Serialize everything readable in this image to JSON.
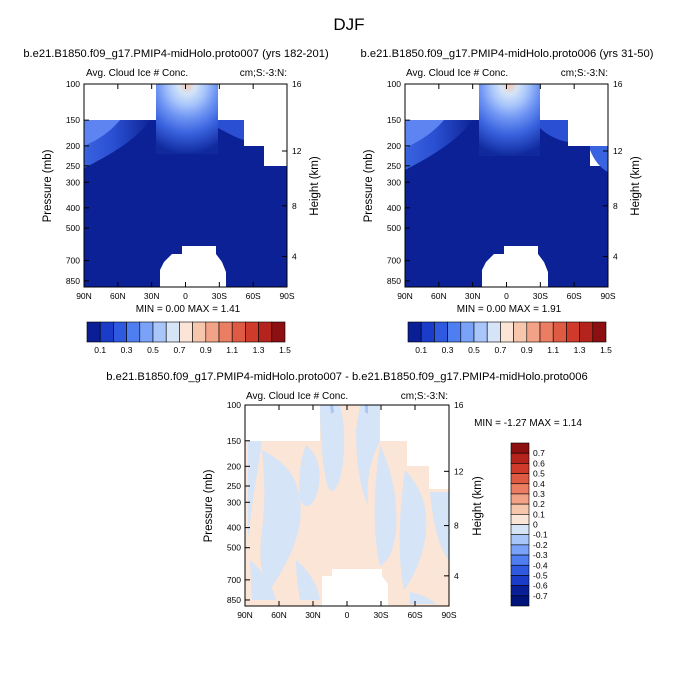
{
  "figure_title": "DJF",
  "chart_data": [
    {
      "type": "contour",
      "title": "b.e21.B1850.f09_g17.PMIP4-midHolo.proto007 (yrs 182-201)",
      "left_label": "Avg. Cloud Ice # Conc.",
      "right_label": "cm;S:-3:N:",
      "ylabel": "Pressure (mb)",
      "ylabel_right": "Height (km)",
      "xticks": [
        "90N",
        "60N",
        "30N",
        "0",
        "30S",
        "60S",
        "90S"
      ],
      "yticks": [
        "100",
        "150",
        "200",
        "250",
        "300",
        "400",
        "500",
        "700",
        "850"
      ],
      "yticks_right": [
        "16",
        "12",
        "8",
        "4"
      ],
      "stats": "MIN =  0.00  MAX =  1.41",
      "min": 0.0,
      "max": 1.41
    },
    {
      "type": "contour",
      "title": "b.e21.B1850.f09_g17.PMIP4-midHolo.proto006 (yrs 31-50)",
      "left_label": "Avg. Cloud Ice # Conc.",
      "right_label": "cm;S:-3:N:",
      "ylabel": "Pressure (mb)",
      "ylabel_right": "Height (km)",
      "xticks": [
        "90N",
        "60N",
        "30N",
        "0",
        "30S",
        "60S",
        "90S"
      ],
      "yticks": [
        "100",
        "150",
        "200",
        "250",
        "300",
        "400",
        "500",
        "700",
        "850"
      ],
      "yticks_right": [
        "16",
        "12",
        "8",
        "4"
      ],
      "stats": "MIN =  0.00  MAX =  1.91",
      "min": 0.0,
      "max": 1.91
    },
    {
      "type": "contour",
      "title": "b.e21.B1850.f09_g17.PMIP4-midHolo.proto007 - b.e21.B1850.f09_g17.PMIP4-midHolo.proto006",
      "left_label": "Avg. Cloud Ice # Conc.",
      "right_label": "cm;S:-3:N:",
      "ylabel": "Pressure (mb)",
      "ylabel_right": "Height (km)",
      "xticks": [
        "90N",
        "60N",
        "30N",
        "0",
        "30S",
        "60S",
        "90S"
      ],
      "yticks": [
        "100",
        "150",
        "200",
        "250",
        "300",
        "400",
        "500",
        "700",
        "850"
      ],
      "yticks_right": [
        "16",
        "12",
        "8",
        "4"
      ],
      "stats": "MIN = -1.27  MAX =  1.14",
      "min": -1.27,
      "max": 1.14
    }
  ],
  "colorbar_main": {
    "labels": [
      "0.1",
      "0.3",
      "0.5",
      "0.7",
      "0.9",
      "1.1",
      "1.3",
      "1.5"
    ],
    "colors": [
      "#0a1e96",
      "#1a3cc8",
      "#2f5ae0",
      "#4f7ef0",
      "#7aa2f8",
      "#a9c6fb",
      "#d5e4f7",
      "#fbe5d6",
      "#f6c6ad",
      "#f2a287",
      "#ea7d62",
      "#df5a42",
      "#cf3a2a",
      "#b4241c",
      "#8c0f12"
    ]
  },
  "colorbar_diff": {
    "labels": [
      "0.7",
      "0.6",
      "0.5",
      "0.4",
      "0.3",
      "0.2",
      "0.1",
      "0",
      "-0.1",
      "-0.2",
      "-0.3",
      "-0.4",
      "-0.5",
      "-0.6",
      "-0.7"
    ],
    "colors": [
      "#8c0f12",
      "#b4241c",
      "#cf3a2a",
      "#df5a42",
      "#ea7d62",
      "#f2a287",
      "#f6c6ad",
      "#fbe5d6",
      "#d5e4f7",
      "#a9c6fb",
      "#7aa2f8",
      "#4f7ef0",
      "#2f5ae0",
      "#1a3cc8",
      "#0a1e96",
      "#00137a"
    ]
  }
}
